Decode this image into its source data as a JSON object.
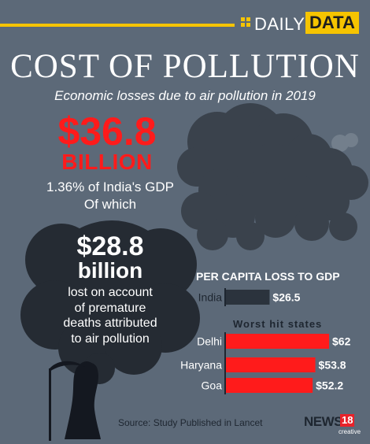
{
  "brand": {
    "daily": "DAILY",
    "data": "DATA"
  },
  "header": {
    "title": "COST OF POLLUTION",
    "subtitle": "Economic losses due to air pollution in 2019"
  },
  "headline": {
    "amount": "$36.8",
    "unit": "BILLION",
    "share": "1.36% of India's GDP",
    "of_which": "Of which"
  },
  "bubble": {
    "amount": "$28.8",
    "unit": "billion",
    "lines": [
      "lost on account",
      "of premature",
      "deaths attributed",
      "to air pollution"
    ]
  },
  "chart_data": {
    "type": "bar",
    "orientation": "horizontal",
    "title": "PER CAPITA LOSS TO GDP",
    "subtitle": "Worst hit states",
    "categories": [
      "India",
      "Delhi",
      "Haryana",
      "Goa"
    ],
    "values": [
      26.5,
      62,
      53.8,
      52.2
    ],
    "labels": [
      "$26.5",
      "$62",
      "$53.8",
      "$52.2"
    ],
    "colors": [
      "#2b333d",
      "#ff1b1b",
      "#ff1b1b",
      "#ff1b1b"
    ],
    "xlim": [
      0,
      62
    ],
    "grid": false,
    "legend": "none"
  },
  "footer": {
    "source": "Source: Study Published in Lancet",
    "logo_news": "NEWS",
    "logo_num": "18",
    "logo_sub": "creative"
  },
  "icons": [
    "smoke-cloud-icon",
    "grim-reaper-icon"
  ],
  "colors": {
    "background": "#5c6978",
    "accent": "#f6c400",
    "red": "#ff1b1b",
    "dark": "#2b333d"
  }
}
